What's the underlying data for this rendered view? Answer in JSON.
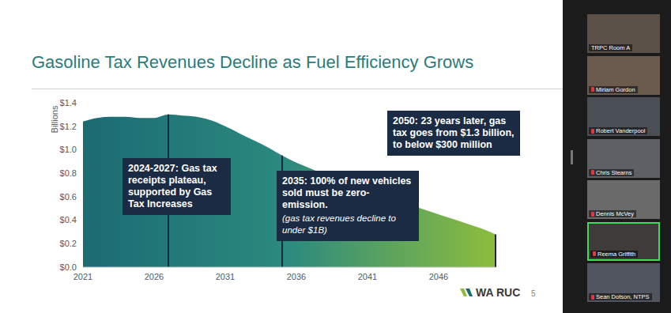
{
  "chart_data": {
    "type": "area",
    "title": "Gasoline Tax Revenues Decline as Fuel Efficiency Grows",
    "y_label": "Billions",
    "x": [
      2021,
      2022,
      2023,
      2024,
      2025,
      2026,
      2027,
      2028,
      2029,
      2030,
      2031,
      2032,
      2033,
      2034,
      2035,
      2036,
      2037,
      2038,
      2039,
      2040,
      2041,
      2042,
      2043,
      2044,
      2045,
      2046,
      2047,
      2048,
      2049,
      2050
    ],
    "values": [
      1.24,
      1.27,
      1.28,
      1.28,
      1.27,
      1.27,
      1.3,
      1.29,
      1.28,
      1.25,
      1.2,
      1.14,
      1.08,
      1.02,
      0.95,
      0.89,
      0.84,
      0.79,
      0.74,
      0.69,
      0.65,
      0.61,
      0.57,
      0.53,
      0.49,
      0.45,
      0.41,
      0.37,
      0.33,
      0.28
    ],
    "color": "#1b6b73",
    "xlim": [
      2021,
      2050
    ],
    "xticks": [
      2021,
      2026,
      2031,
      2036,
      2041,
      2046
    ],
    "ylim": [
      0,
      1.4
    ],
    "yticks": [
      {
        "value": 0,
        "label": "$0.0"
      },
      {
        "value": 0.2,
        "label": "$0.2"
      },
      {
        "value": 0.4,
        "label": "$0.4"
      },
      {
        "value": 0.6,
        "label": "$0.6"
      },
      {
        "value": 0.8,
        "label": "$0.8"
      },
      {
        "value": 1.0,
        "label": "$1.0"
      },
      {
        "value": 1.2,
        "label": "$1.2"
      },
      {
        "value": 1.4,
        "label": "$1.4"
      }
    ],
    "grid": false,
    "annotations": [
      {
        "x": 2027,
        "label": "2024-2027",
        "text": ": Gas tax receipts plateau, supported by Gas Tax Increases"
      },
      {
        "x": 2035,
        "label": "2035",
        "text": ": 100% of new vehicles sold must be zero-emission.",
        "note": "(gas tax revenues decline to under $1B)"
      },
      {
        "x": 2050,
        "label": "2050",
        "text": ": 23 years later, gas tax goes from $1.3 billion, to below $300 million"
      }
    ]
  },
  "slide": {
    "page_number": 5,
    "logo": "WA RUC"
  },
  "participants": [
    "TRPC Room A",
    "Miriam Gordon",
    "Robert Vanderpool",
    "Chris Stearns",
    "Dennis McVey",
    "Reema Griffith",
    "Sean Dotson, NTPS"
  ]
}
